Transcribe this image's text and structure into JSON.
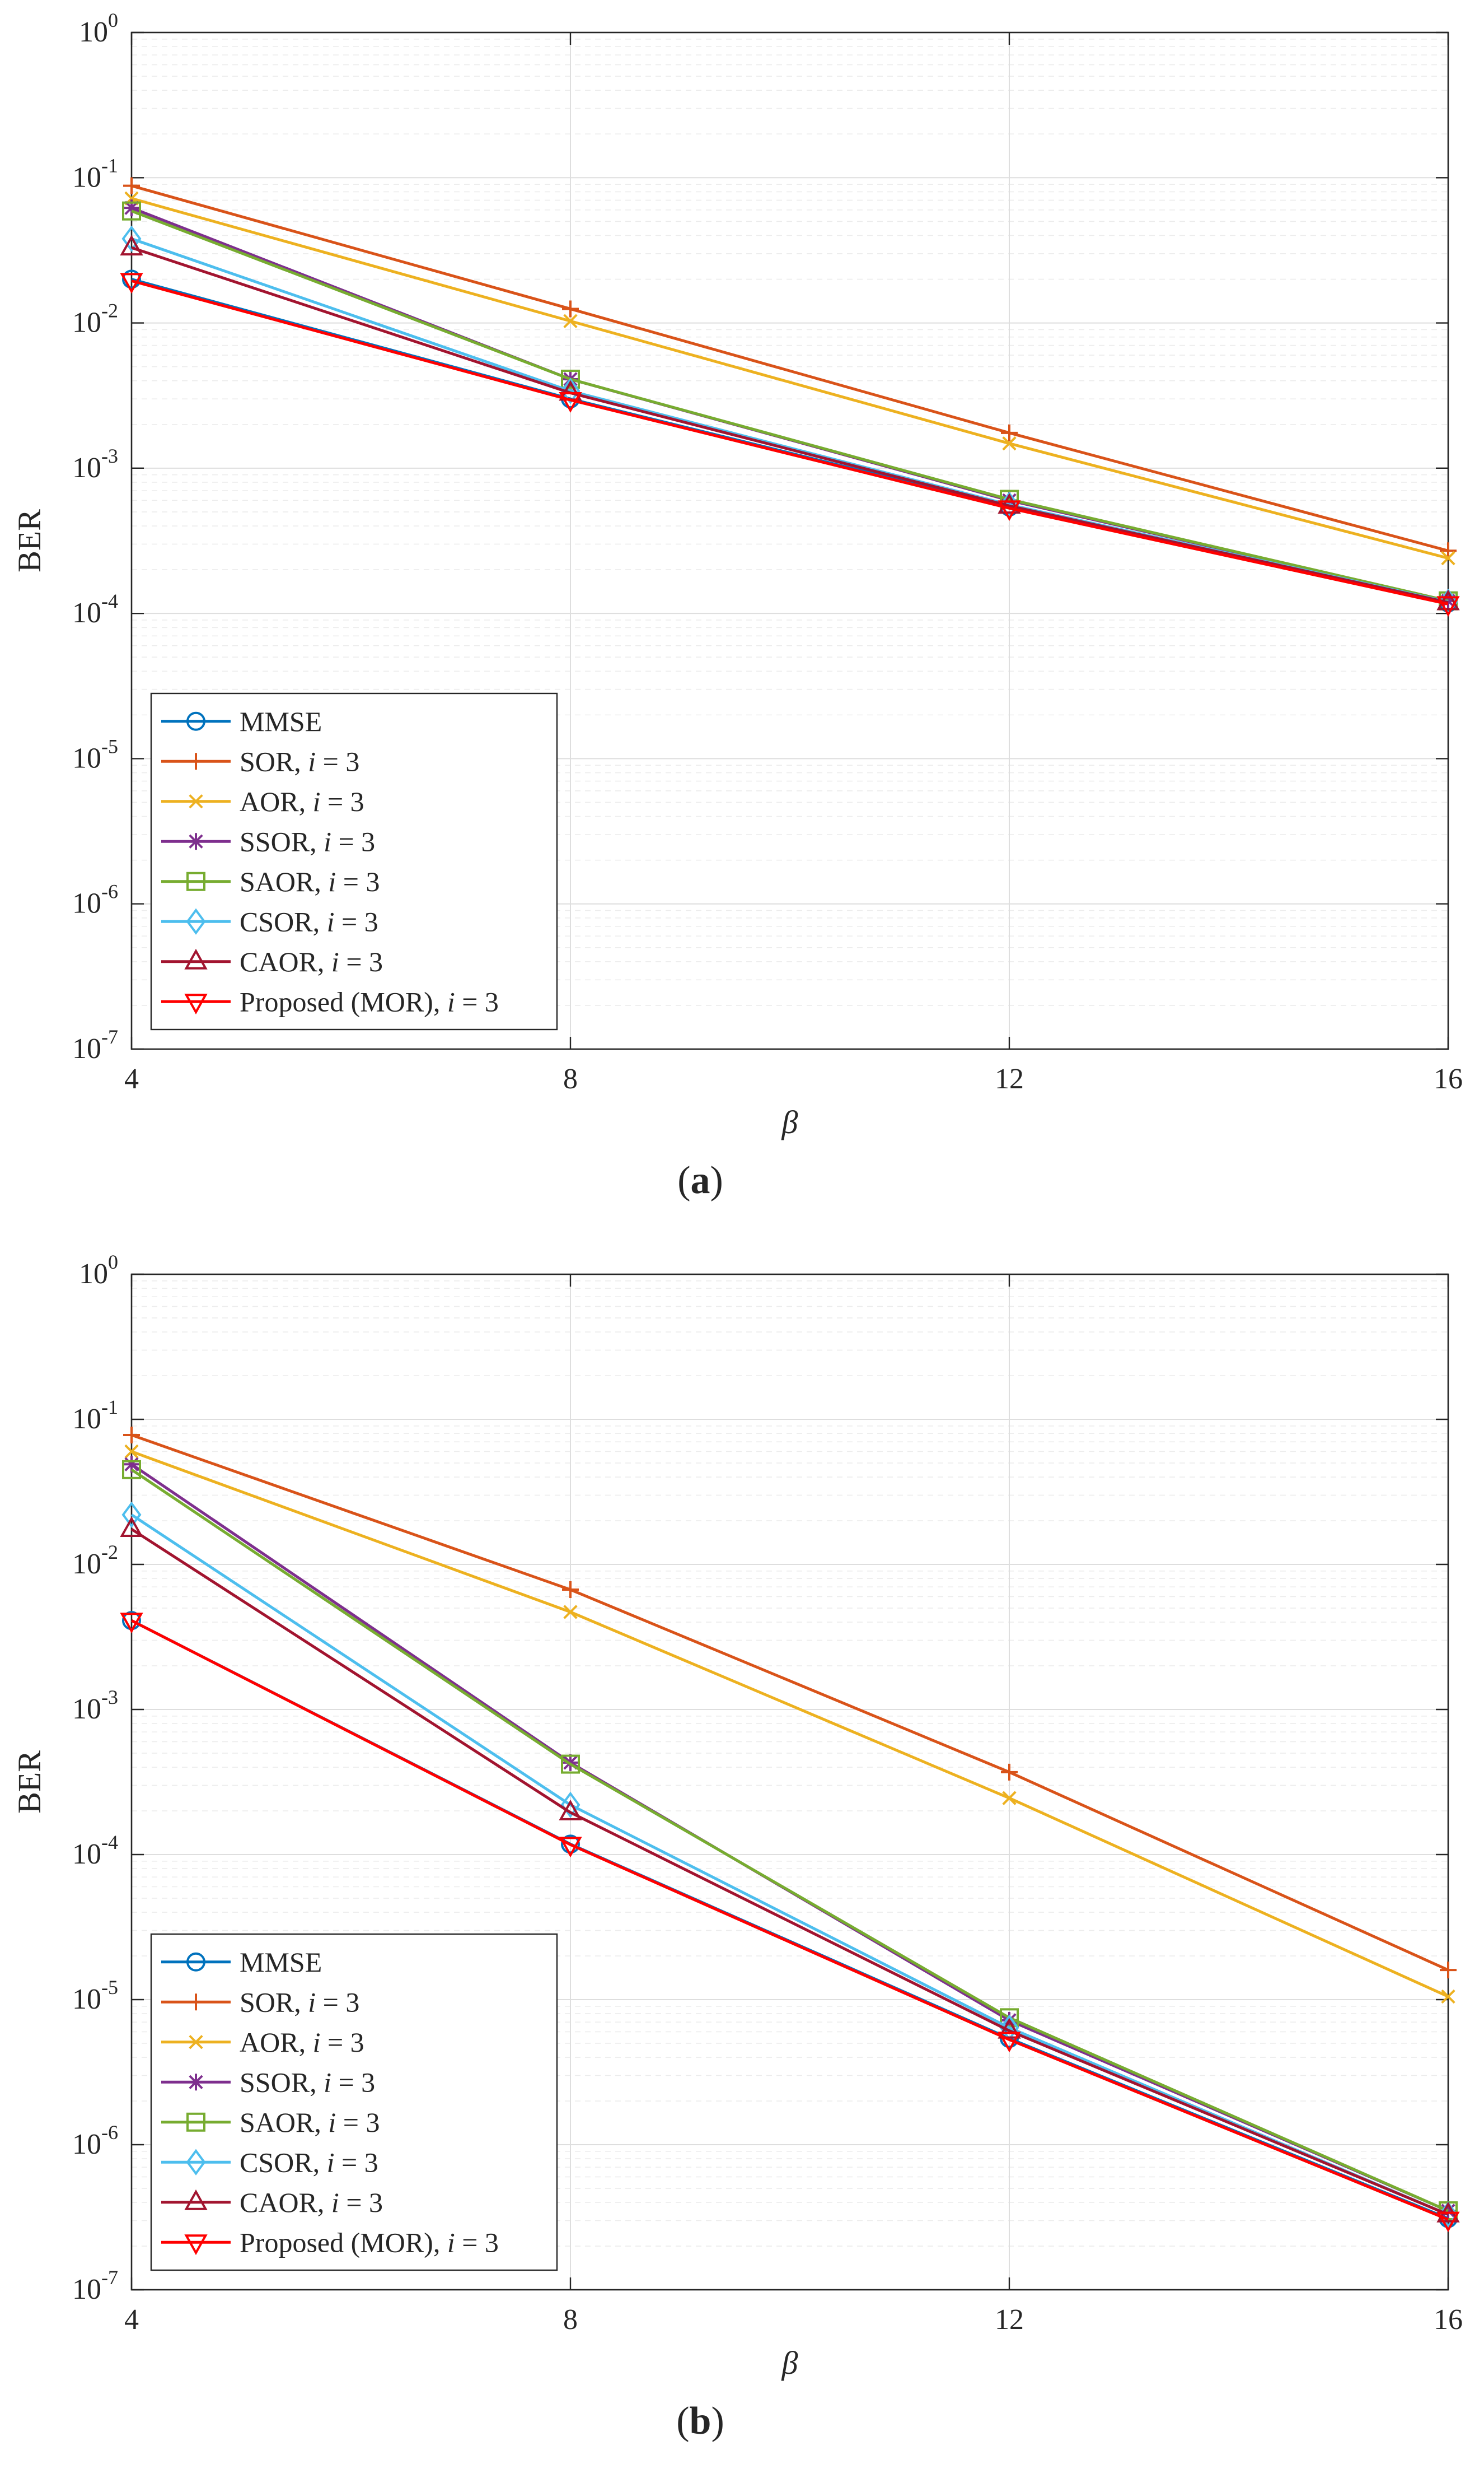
{
  "chart_data": [
    {
      "type": "line",
      "panel_label": "(a)",
      "xlabel": "β",
      "ylabel": "BER",
      "xscale": "linear",
      "yscale": "log",
      "x": [
        4,
        8,
        12,
        16
      ],
      "xticks": [
        "4",
        "8",
        "12",
        "16"
      ],
      "xlim": [
        4,
        16
      ],
      "ylim": [
        1e-07,
        1
      ],
      "yticks": [
        {
          "base": "10",
          "exp": "0"
        },
        {
          "base": "10",
          "exp": "-1"
        },
        {
          "base": "10",
          "exp": "-2"
        },
        {
          "base": "10",
          "exp": "-3"
        },
        {
          "base": "10",
          "exp": "-4"
        },
        {
          "base": "10",
          "exp": "-5"
        },
        {
          "base": "10",
          "exp": "-6"
        },
        {
          "base": "10",
          "exp": "-7"
        }
      ],
      "grid": true,
      "legend_position": "bottom-left",
      "series": [
        {
          "name": "MMSE",
          "suffix": "",
          "marker": "circle",
          "color": "#0072BD",
          "values": [
            0.02,
            0.003,
            0.00054,
            0.000118
          ]
        },
        {
          "name": "SOR, ",
          "suffix": " = 3",
          "marker": "plus",
          "color": "#D95319",
          "values": [
            0.088,
            0.0125,
            0.00175,
            0.00027
          ]
        },
        {
          "name": "AOR, ",
          "suffix": " = 3",
          "marker": "x",
          "color": "#EDB120",
          "values": [
            0.072,
            0.0103,
            0.00148,
            0.00024
          ]
        },
        {
          "name": "SSOR, ",
          "suffix": " = 3",
          "marker": "star",
          "color": "#7E2F8E",
          "values": [
            0.062,
            0.0041,
            0.0006,
            0.000122
          ]
        },
        {
          "name": "SAOR, ",
          "suffix": " = 3",
          "marker": "square",
          "color": "#77AC30",
          "values": [
            0.059,
            0.0041,
            0.00061,
            0.000122
          ]
        },
        {
          "name": "CSOR, ",
          "suffix": " = 3",
          "marker": "diamond",
          "color": "#4DBEEE",
          "values": [
            0.038,
            0.0034,
            0.00056,
            0.00012
          ]
        },
        {
          "name": "CAOR, ",
          "suffix": " = 3",
          "marker": "triangle-up",
          "color": "#A2142F",
          "values": [
            0.033,
            0.0033,
            0.00055,
            0.000119
          ]
        },
        {
          "name": "Proposed (MOR), ",
          "suffix": " = 3",
          "marker": "triangle-down",
          "color": "#FF0000",
          "values": [
            0.0195,
            0.00295,
            0.00053,
            0.000116
          ]
        }
      ]
    },
    {
      "type": "line",
      "panel_label": "(b)",
      "xlabel": "β",
      "ylabel": "BER",
      "xscale": "linear",
      "yscale": "log",
      "x": [
        4,
        8,
        12,
        16
      ],
      "xticks": [
        "4",
        "8",
        "12",
        "16"
      ],
      "xlim": [
        4,
        16
      ],
      "ylim": [
        1e-07,
        1
      ],
      "yticks": [
        {
          "base": "10",
          "exp": "0"
        },
        {
          "base": "10",
          "exp": "-1"
        },
        {
          "base": "10",
          "exp": "-2"
        },
        {
          "base": "10",
          "exp": "-3"
        },
        {
          "base": "10",
          "exp": "-4"
        },
        {
          "base": "10",
          "exp": "-5"
        },
        {
          "base": "10",
          "exp": "-6"
        },
        {
          "base": "10",
          "exp": "-7"
        }
      ],
      "grid": true,
      "legend_position": "bottom-left",
      "series": [
        {
          "name": "MMSE",
          "suffix": "",
          "marker": "circle",
          "color": "#0072BD",
          "values": [
            0.0041,
            0.000118,
            5.4e-06,
            3.1e-07
          ]
        },
        {
          "name": "SOR, ",
          "suffix": " = 3",
          "marker": "plus",
          "color": "#D95319",
          "values": [
            0.078,
            0.0067,
            0.00037,
            1.6e-05
          ]
        },
        {
          "name": "AOR, ",
          "suffix": " = 3",
          "marker": "x",
          "color": "#EDB120",
          "values": [
            0.06,
            0.0047,
            0.000245,
            1.05e-05
          ]
        },
        {
          "name": "SSOR, ",
          "suffix": " = 3",
          "marker": "star",
          "color": "#7E2F8E",
          "values": [
            0.049,
            0.00043,
            7.2e-06,
            3.5e-07
          ]
        },
        {
          "name": "SAOR, ",
          "suffix": " = 3",
          "marker": "square",
          "color": "#77AC30",
          "values": [
            0.045,
            0.00042,
            7.5e-06,
            3.5e-07
          ]
        },
        {
          "name": "CSOR, ",
          "suffix": " = 3",
          "marker": "diamond",
          "color": "#4DBEEE",
          "values": [
            0.022,
            0.00022,
            6.4e-06,
            3.3e-07
          ]
        },
        {
          "name": "CAOR, ",
          "suffix": " = 3",
          "marker": "triangle-up",
          "color": "#A2142F",
          "values": [
            0.0175,
            0.000195,
            6.1e-06,
            3.3e-07
          ]
        },
        {
          "name": "Proposed (MOR), ",
          "suffix": " = 3",
          "marker": "triangle-down",
          "color": "#FF0000",
          "values": [
            0.0041,
            0.000117,
            5.3e-06,
            3.05e-07
          ]
        }
      ]
    }
  ],
  "legend_var": "i"
}
